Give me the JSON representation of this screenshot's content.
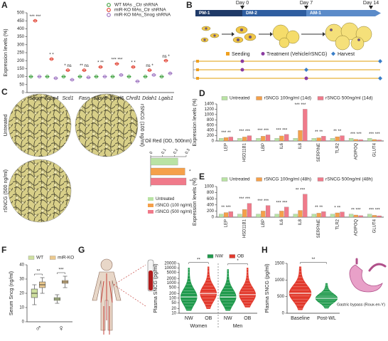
{
  "panel_labels": [
    "A",
    "B",
    "C",
    "D",
    "E",
    "F",
    "G",
    "H"
  ],
  "diagram_b": {
    "stages": [
      "PM-1",
      "DM-2",
      "AM-1"
    ],
    "days": [
      "Day 0",
      "Day 7",
      "Day 14"
    ],
    "legend": [
      "Seeding",
      "Treatment (Vehicle/rSNCG)",
      "Harvest"
    ]
  },
  "illustration_h": {
    "caption": "Gastric bypass (Roux-en-Y)"
  },
  "chart_data": [
    {
      "type": "bar",
      "style": "dot",
      "y_label": "Expression levels (%)",
      "categories": [
        "Snog",
        "Fabp4",
        "Scd1",
        "Fasn",
        "Elovl5",
        "Elovl6",
        "Chrdl1",
        "Ddah1",
        "Lgals1"
      ],
      "series": [
        {
          "name": "WT MAs _Ctr shRNA",
          "color": "#3a9e3a",
          "values": [
            100,
            100,
            100,
            100,
            100,
            100,
            100,
            100,
            100
          ]
        },
        {
          "name": "miR-KO MAs_Ctr shRNA",
          "color": "#e03a2a",
          "values": [
            450,
            210,
            140,
            140,
            160,
            180,
            160,
            140,
            200
          ]
        },
        {
          "name": "miR-KO MAs_Snog shRNA",
          "color": "#9a6fbf",
          "values": [
            100,
            90,
            80,
            95,
            100,
            110,
            70,
            110,
            120
          ]
        }
      ],
      "ylim": [
        0,
        500
      ],
      "yticks": [
        0,
        50,
        100,
        150,
        200,
        250,
        300,
        350,
        400,
        450,
        500
      ],
      "significance": [
        "*** ***",
        "* *",
        "* ns",
        "** ns",
        "* **",
        "*** ***",
        "* *",
        "ns *",
        "ns *"
      ]
    },
    {
      "type": "hbar",
      "x_label": "Oil Red (OD, 500nm)",
      "categories": [
        "Untreated",
        "rSNCG (100 ng/ml)",
        "rSNCG (500 ng/ml)"
      ],
      "values": [
        0.23,
        0.29,
        0.3
      ],
      "colors": [
        "#b9e3a4",
        "#f5a04a",
        "#f07a8a"
      ],
      "xlim": [
        0,
        0.3
      ],
      "xticks": [
        0,
        0.1,
        0.2,
        0.3
      ],
      "significance": [
        null,
        "*",
        "**"
      ]
    },
    {
      "type": "bar",
      "y_label": "Expression levels (%)",
      "categories": [
        "LEP",
        "HSD11B1",
        "LBP",
        "IL6",
        "IL8",
        "SERPINE",
        "TLR2",
        "ADIPOQ",
        "GLUT4"
      ],
      "series": [
        {
          "name": "Untreated",
          "color": "#b9e3a4",
          "values": [
            100,
            100,
            100,
            100,
            100,
            100,
            100,
            100,
            100
          ]
        },
        {
          "name": "rSNCG 100ng/ml (14d)",
          "color": "#f5a04a",
          "values": [
            130,
            150,
            180,
            190,
            400,
            120,
            160,
            60,
            55
          ]
        },
        {
          "name": "rSNCG 500ng/ml (14d)",
          "color": "#f07a8a",
          "values": [
            150,
            200,
            230,
            250,
            1200,
            180,
            200,
            50,
            40
          ]
        }
      ],
      "ylim": [
        0,
        1400
      ],
      "yticks": [
        0,
        200,
        400,
        600,
        800,
        1000,
        1200,
        1400
      ],
      "significance": [
        "*** **",
        "*** ***",
        "*** ***",
        "*** ***",
        "*** ***",
        "** **",
        "** **",
        "*** ***",
        "*** ***"
      ]
    },
    {
      "type": "bar",
      "y_label": "Expression levels (%)",
      "categories": [
        "LEP",
        "HSD11B1",
        "LBP",
        "IL6",
        "IL8",
        "SERPINE",
        "TLR2",
        "ADIPOQ",
        "GLUT4"
      ],
      "series": [
        {
          "name": "Untreated",
          "color": "#b9e3a4",
          "values": [
            100,
            100,
            100,
            100,
            100,
            100,
            100,
            100,
            100
          ]
        },
        {
          "name": "rSNCG 100ng/ml (48h)",
          "color": "#f5a04a",
          "values": [
            150,
            250,
            200,
            200,
            220,
            130,
            140,
            70,
            60
          ]
        },
        {
          "name": "rSNCG 500ng/ml (48h)",
          "color": "#f07a8a",
          "values": [
            180,
            450,
            380,
            330,
            750,
            180,
            170,
            50,
            45
          ]
        }
      ],
      "ylim": [
        0,
        1000
      ],
      "yticks": [
        0,
        200,
        400,
        600,
        800,
        1000
      ],
      "significance": [
        "** ***",
        "*** ***",
        "*** ***",
        "*** ***",
        "** ***",
        "** **",
        "* **",
        "** ***",
        "*** ***"
      ]
    },
    {
      "type": "box",
      "y_label": "Serum Sncg (ng/ml)",
      "categories": [
        "♂",
        "♀"
      ],
      "series": [
        {
          "name": "WT",
          "color": "#cfe0a0",
          "values": [
            [
              12,
              17,
              20,
              23,
              26
            ],
            [
              13,
              15,
              16,
              17,
              19
            ]
          ]
        },
        {
          "name": "miR-KO",
          "color": "#ecc98e",
          "values": [
            [
              20,
              24,
              26,
              28,
              31
            ],
            [
              24,
              27,
              28,
              29,
              32
            ]
          ]
        }
      ],
      "ylim": [
        0,
        40
      ],
      "yticks": [
        0,
        10,
        20,
        30,
        40
      ],
      "significance": [
        "**",
        "***"
      ]
    },
    {
      "type": "violin",
      "log_scale": true,
      "y_label": "Plasma SNCG (pg/ml)",
      "categories": [
        "Women",
        "Men"
      ],
      "series": [
        {
          "name": "NW",
          "color": "#1f9a4c",
          "values": [
            120,
            120
          ],
          "min": [
            15,
            15
          ],
          "max": [
            10000,
            8000
          ]
        },
        {
          "name": "OB",
          "color": "#e2392c",
          "values": [
            200,
            170
          ],
          "min": [
            20,
            25
          ],
          "max": [
            12000,
            10000
          ]
        }
      ],
      "ylim": [
        10,
        20000
      ],
      "yticks": [
        10,
        20,
        50,
        100,
        200,
        500,
        1000,
        2000,
        5000,
        10000,
        20000
      ],
      "significance": [
        "**",
        "*"
      ]
    },
    {
      "type": "violin",
      "y_label": "Plasma SNCG (pg/ml)",
      "categories": [
        "Baseline",
        "Post-WL"
      ],
      "values": [
        600,
        450
      ],
      "min": [
        100,
        150
      ],
      "max": [
        1400,
        900
      ],
      "colors": [
        "#e2392c",
        "#1f9a4c"
      ],
      "ylim": [
        0,
        1500
      ],
      "yticks": [
        0,
        500,
        1000,
        1500
      ],
      "significance": [
        "**"
      ]
    }
  ]
}
